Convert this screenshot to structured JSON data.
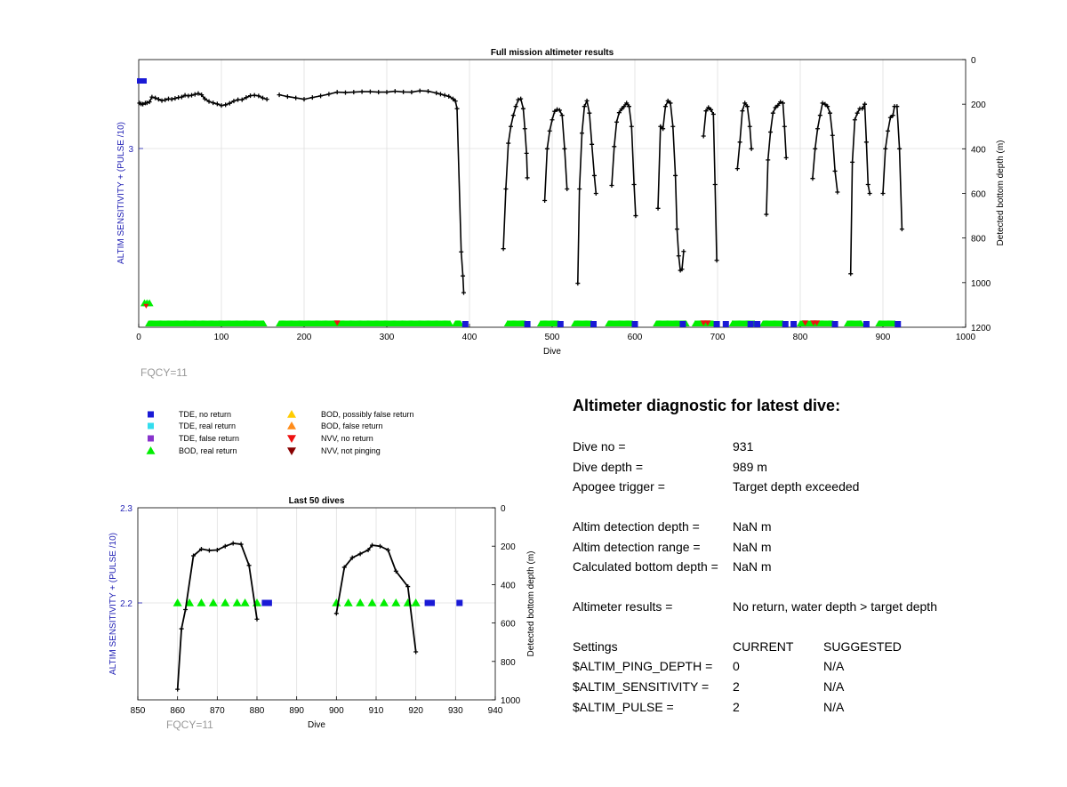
{
  "colors": {
    "axis_left": "#1f1fb4",
    "grid": "#dfdfdf",
    "line": "#000000",
    "tde_no_return": "#1a1ad6",
    "tde_real_return": "#33ddee",
    "tde_false_return": "#8833cc",
    "bod_real_return": "#00ee00",
    "bod_possibly_false": "#ffcc00",
    "bod_false": "#ff8c1a",
    "nvv_no_return": "#ee1111",
    "nvv_not_pinging": "#880000",
    "fqcy": "#999999"
  },
  "chart_data": [
    {
      "type": "scatter",
      "title": "Full mission altimeter results",
      "xlabel": "Dive",
      "ylabel_left": "ALTIM SENSITIVITY + (PULSE /10)",
      "ylabel_right": "Detected bottom depth (m)",
      "annotation": "FQCY=11",
      "xlim": [
        0,
        1000
      ],
      "x_ticks": [
        "0",
        "100",
        "200",
        "300",
        "400",
        "500",
        "600",
        "700",
        "800",
        "900",
        "1000"
      ],
      "ylim_right": [
        1200,
        0
      ],
      "y_ticks_right": [
        "0",
        "200",
        "400",
        "600",
        "800",
        "1000",
        "1200"
      ],
      "y_ticks_left": [
        "3"
      ],
      "grid": true,
      "bottom_depth_series": [
        [
          1,
          195
        ],
        [
          3,
          199
        ],
        [
          5,
          200
        ],
        [
          8,
          195
        ],
        [
          10,
          194
        ],
        [
          13,
          190
        ],
        [
          16,
          168
        ],
        [
          20,
          172
        ],
        [
          24,
          178
        ],
        [
          28,
          184
        ],
        [
          32,
          181
        ],
        [
          36,
          176
        ],
        [
          40,
          178
        ],
        [
          44,
          174
        ],
        [
          48,
          170
        ],
        [
          52,
          168
        ],
        [
          56,
          160
        ],
        [
          60,
          163
        ],
        [
          64,
          160
        ],
        [
          68,
          156
        ],
        [
          72,
          152
        ],
        [
          76,
          158
        ],
        [
          80,
          176
        ],
        [
          85,
          188
        ],
        [
          90,
          194
        ],
        [
          95,
          199
        ],
        [
          100,
          206
        ],
        [
          105,
          203
        ],
        [
          110,
          196
        ],
        [
          115,
          186
        ],
        [
          120,
          180
        ],
        [
          125,
          180
        ],
        [
          130,
          170
        ],
        [
          135,
          162
        ],
        [
          140,
          160
        ],
        [
          145,
          163
        ],
        [
          150,
          172
        ],
        [
          155,
          178
        ],
        [
          170,
          158
        ],
        [
          180,
          166
        ],
        [
          190,
          172
        ],
        [
          200,
          178
        ],
        [
          210,
          170
        ],
        [
          220,
          163
        ],
        [
          230,
          155
        ],
        [
          240,
          146
        ],
        [
          250,
          148
        ],
        [
          260,
          146
        ],
        [
          270,
          144
        ],
        [
          280,
          144
        ],
        [
          290,
          146
        ],
        [
          300,
          146
        ],
        [
          310,
          142
        ],
        [
          320,
          145
        ],
        [
          330,
          146
        ],
        [
          340,
          140
        ],
        [
          350,
          142
        ],
        [
          360,
          150
        ],
        [
          365,
          155
        ],
        [
          370,
          160
        ],
        [
          375,
          165
        ],
        [
          380,
          176
        ],
        [
          383,
          186
        ],
        [
          385,
          220
        ],
        [
          390,
          862
        ],
        [
          392,
          970
        ],
        [
          393,
          1045
        ],
        [
          441,
          848
        ],
        [
          444,
          580
        ],
        [
          447,
          375
        ],
        [
          450,
          300
        ],
        [
          453,
          250
        ],
        [
          456,
          210
        ],
        [
          459,
          180
        ],
        [
          462,
          176
        ],
        [
          465,
          220
        ],
        [
          467,
          310
        ],
        [
          469,
          420
        ],
        [
          470,
          530
        ],
        [
          491,
          632
        ],
        [
          494,
          400
        ],
        [
          497,
          320
        ],
        [
          500,
          270
        ],
        [
          503,
          232
        ],
        [
          506,
          224
        ],
        [
          509,
          227
        ],
        [
          512,
          250
        ],
        [
          515,
          400
        ],
        [
          518,
          580
        ],
        [
          531,
          1003
        ],
        [
          533,
          580
        ],
        [
          536,
          330
        ],
        [
          539,
          210
        ],
        [
          542,
          185
        ],
        [
          545,
          240
        ],
        [
          548,
          380
        ],
        [
          551,
          520
        ],
        [
          553,
          600
        ],
        [
          572,
          564
        ],
        [
          575,
          390
        ],
        [
          578,
          280
        ],
        [
          581,
          238
        ],
        [
          584,
          222
        ],
        [
          587,
          210
        ],
        [
          590,
          195
        ],
        [
          593,
          210
        ],
        [
          596,
          300
        ],
        [
          599,
          560
        ],
        [
          601,
          700
        ],
        [
          628,
          667
        ],
        [
          631,
          300
        ],
        [
          634,
          310
        ],
        [
          637,
          210
        ],
        [
          640,
          185
        ],
        [
          643,
          195
        ],
        [
          646,
          300
        ],
        [
          649,
          520
        ],
        [
          651,
          760
        ],
        [
          653,
          880
        ],
        [
          655,
          945
        ],
        [
          657,
          940
        ],
        [
          659,
          860
        ],
        [
          683,
          343
        ],
        [
          686,
          230
        ],
        [
          689,
          215
        ],
        [
          692,
          225
        ],
        [
          695,
          245
        ],
        [
          697,
          560
        ],
        [
          699,
          900
        ],
        [
          724,
          489
        ],
        [
          727,
          370
        ],
        [
          730,
          230
        ],
        [
          733,
          195
        ],
        [
          736,
          210
        ],
        [
          739,
          300
        ],
        [
          741,
          400
        ],
        [
          759,
          694
        ],
        [
          761,
          450
        ],
        [
          764,
          325
        ],
        [
          767,
          240
        ],
        [
          770,
          215
        ],
        [
          773,
          205
        ],
        [
          776,
          190
        ],
        [
          779,
          195
        ],
        [
          781,
          300
        ],
        [
          783,
          440
        ],
        [
          815,
          533
        ],
        [
          818,
          400
        ],
        [
          821,
          310
        ],
        [
          824,
          250
        ],
        [
          827,
          195
        ],
        [
          830,
          200
        ],
        [
          833,
          210
        ],
        [
          836,
          240
        ],
        [
          839,
          340
        ],
        [
          842,
          500
        ],
        [
          845,
          594
        ],
        [
          861,
          960
        ],
        [
          863,
          460
        ],
        [
          866,
          270
        ],
        [
          869,
          240
        ],
        [
          872,
          220
        ],
        [
          875,
          220
        ],
        [
          878,
          200
        ],
        [
          880,
          370
        ],
        [
          882,
          560
        ],
        [
          884,
          600
        ],
        [
          900,
          600
        ],
        [
          903,
          400
        ],
        [
          906,
          320
        ],
        [
          909,
          260
        ],
        [
          912,
          250
        ],
        [
          914,
          210
        ],
        [
          917,
          210
        ],
        [
          920,
          400
        ],
        [
          923,
          760
        ]
      ],
      "left_axis_points": [
        {
          "series": "TDE, no return",
          "x": 3,
          "y": 3.3
        },
        {
          "series": "BOD, real return",
          "x": 10,
          "y": 2.1
        }
      ],
      "bottom_markers": {
        "series": "BOD, real return",
        "segments": [
          [
            12,
            152
          ],
          [
            170,
            377
          ],
          [
            383,
            390
          ],
          [
            446,
            468
          ],
          [
            486,
            508
          ],
          [
            527,
            548
          ],
          [
            568,
            598
          ],
          [
            626,
            663
          ],
          [
            673,
            695
          ],
          [
            718,
            745
          ],
          [
            755,
            780
          ],
          [
            800,
            840
          ],
          [
            857,
            875
          ],
          [
            895,
            915
          ]
        ]
      },
      "tde_markers": {
        "series": "TDE, no return",
        "x": [
          395,
          470,
          510,
          550,
          600,
          658,
          699,
          710,
          740,
          748,
          782,
          792,
          842,
          880,
          918
        ]
      },
      "nvv_markers": {
        "series": "NVV, no return",
        "x": [
          240,
          683,
          688,
          806,
          816,
          820
        ]
      }
    },
    {
      "type": "scatter",
      "title": "Last 50 dives",
      "xlabel": "Dive",
      "ylabel_left": "ALTIM SENSITIVITY + (PULSE /10)",
      "ylabel_right": "Detected bottom depth (m)",
      "annotation": "FQCY=11",
      "xlim": [
        850,
        940
      ],
      "x_ticks": [
        "850",
        "860",
        "870",
        "880",
        "890",
        "900",
        "910",
        "920",
        "930",
        "940"
      ],
      "ylim_left": [
        2.1,
        2.3
      ],
      "y_ticks_left": [
        "2.3",
        "2.2"
      ],
      "ylim_right": [
        1000,
        0
      ],
      "y_ticks_right": [
        "0",
        "200",
        "400",
        "600",
        "800",
        "1000"
      ],
      "grid": true,
      "bottom_depth_series": [
        [
          [
            860,
            945
          ],
          [
            861,
            630
          ],
          [
            862,
            530
          ],
          [
            864,
            250
          ],
          [
            866,
            215
          ],
          [
            868,
            222
          ],
          [
            870,
            220
          ],
          [
            872,
            200
          ],
          [
            874,
            185
          ],
          [
            876,
            190
          ],
          [
            878,
            300
          ],
          [
            880,
            580
          ]
        ],
        [
          [
            900,
            550
          ],
          [
            902,
            310
          ],
          [
            904,
            260
          ],
          [
            906,
            240
          ],
          [
            908,
            220
          ],
          [
            909,
            195
          ],
          [
            911,
            200
          ],
          [
            913,
            220
          ],
          [
            915,
            330
          ],
          [
            918,
            410
          ],
          [
            920,
            750
          ]
        ]
      ],
      "bod_real_return_x": [
        860,
        861,
        862,
        863,
        864,
        865,
        866,
        867,
        868,
        869,
        870,
        871,
        872,
        873,
        874,
        875,
        876,
        877,
        878,
        879,
        880,
        881,
        900,
        901,
        902,
        903,
        904,
        905,
        906,
        907,
        908,
        909,
        910,
        911,
        912,
        913,
        914,
        915,
        916,
        917,
        918,
        919,
        920
      ],
      "bod_real_return_x_visible": [
        860,
        863,
        866,
        869,
        872,
        875,
        877,
        880,
        900,
        903,
        906,
        909,
        912,
        915,
        918,
        920
      ],
      "tde_no_return_x": [
        882,
        883,
        923,
        924,
        931
      ]
    }
  ],
  "legend": {
    "items_col1": [
      {
        "label": "TDE, no return",
        "color_key": "tde_no_return",
        "shape": "square"
      },
      {
        "label": "TDE, real return",
        "color_key": "tde_real_return",
        "shape": "square"
      },
      {
        "label": "TDE, false return",
        "color_key": "tde_false_return",
        "shape": "square"
      },
      {
        "label": "BOD, real return",
        "color_key": "bod_real_return",
        "shape": "triangle-up"
      }
    ],
    "items_col2": [
      {
        "label": "BOD, possibly false return",
        "color_key": "bod_possibly_false",
        "shape": "triangle-up"
      },
      {
        "label": "BOD, false return",
        "color_key": "bod_false",
        "shape": "triangle-up"
      },
      {
        "label": "NVV, no return",
        "color_key": "nvv_no_return",
        "shape": "triangle-down"
      },
      {
        "label": "NVV, not pinging",
        "color_key": "nvv_not_pinging",
        "shape": "triangle-down"
      }
    ]
  },
  "diagnostic": {
    "title": "Altimeter diagnostic for latest dive:",
    "dive_no_label": "Dive no =",
    "dive_no_value": "931",
    "dive_depth_label": "Dive depth =",
    "dive_depth_value": "989 m",
    "apogee_label": "Apogee trigger =",
    "apogee_value": "Target depth exceeded",
    "altim_det_depth_label": "Altim detection depth =",
    "altim_det_depth_value": "NaN m",
    "altim_det_range_label": "Altim detection range =",
    "altim_det_range_value": "NaN m",
    "calc_bottom_label": "Calculated bottom depth =",
    "calc_bottom_value": "NaN m",
    "results_label": "Altimeter results =",
    "results_value": "No return, water depth > target depth",
    "settings_label": "Settings",
    "current_label": "CURRENT",
    "suggested_label": "SUGGESTED",
    "ping_depth_label": "$ALTIM_PING_DEPTH =",
    "ping_depth_current": "0",
    "ping_depth_suggested": "N/A",
    "sensitivity_label": "$ALTIM_SENSITIVITY =",
    "sensitivity_current": "2",
    "sensitivity_suggested": "N/A",
    "pulse_label": "$ALTIM_PULSE =",
    "pulse_current": "2",
    "pulse_suggested": "N/A"
  }
}
